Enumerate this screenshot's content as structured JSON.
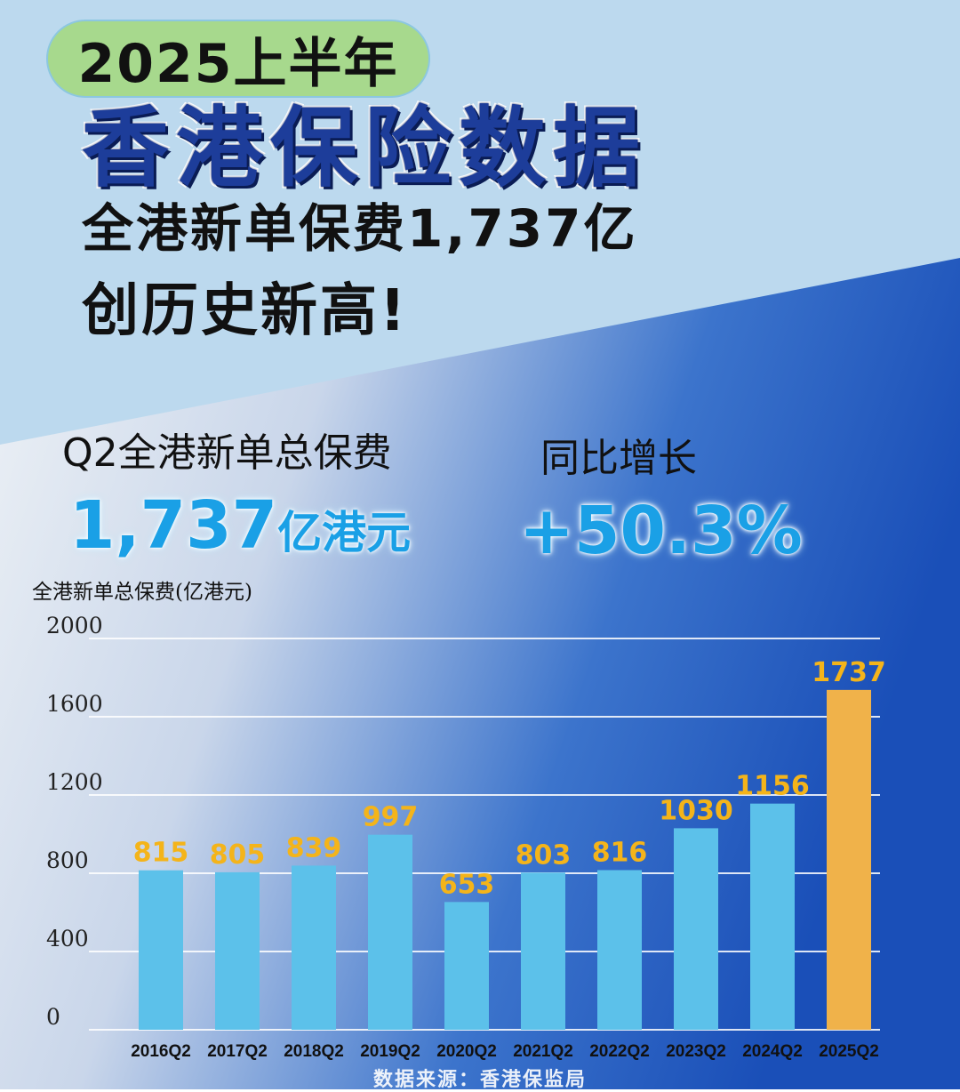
{
  "header": {
    "badge": "2025上半年",
    "title": "香港保险数据",
    "subtitle_line1": "全港新单保费1,737亿",
    "subtitle_line2": "创历史新高!"
  },
  "kpis": {
    "total_label": "Q2全港新单总保费",
    "total_value": "1,737",
    "total_unit": "亿港元",
    "growth_label": "同比增长",
    "growth_value": "+50.3%"
  },
  "colors": {
    "bar": "#5cc1ea",
    "bar_highlight": "#f0b24a",
    "value_label": "#f4b41a",
    "title": "#1d3d9a"
  },
  "footer": {
    "source": "数据来源：香港保监局"
  },
  "chart_data": {
    "type": "bar",
    "title": "",
    "ylabel": "全港新单总保费(亿港元)",
    "xlabel": "",
    "categories": [
      "2016Q2",
      "2017Q2",
      "2018Q2",
      "2019Q2",
      "2020Q2",
      "2021Q2",
      "2022Q2",
      "2023Q2",
      "2024Q2",
      "2025Q2"
    ],
    "values": [
      815,
      805,
      839,
      997,
      653,
      803,
      816,
      1030,
      1156,
      1737
    ],
    "highlight_index": 9,
    "ylim": [
      0,
      2000
    ],
    "yticks": [
      0,
      400,
      800,
      1200,
      1600,
      2000
    ],
    "grid": true,
    "legend": "none"
  }
}
